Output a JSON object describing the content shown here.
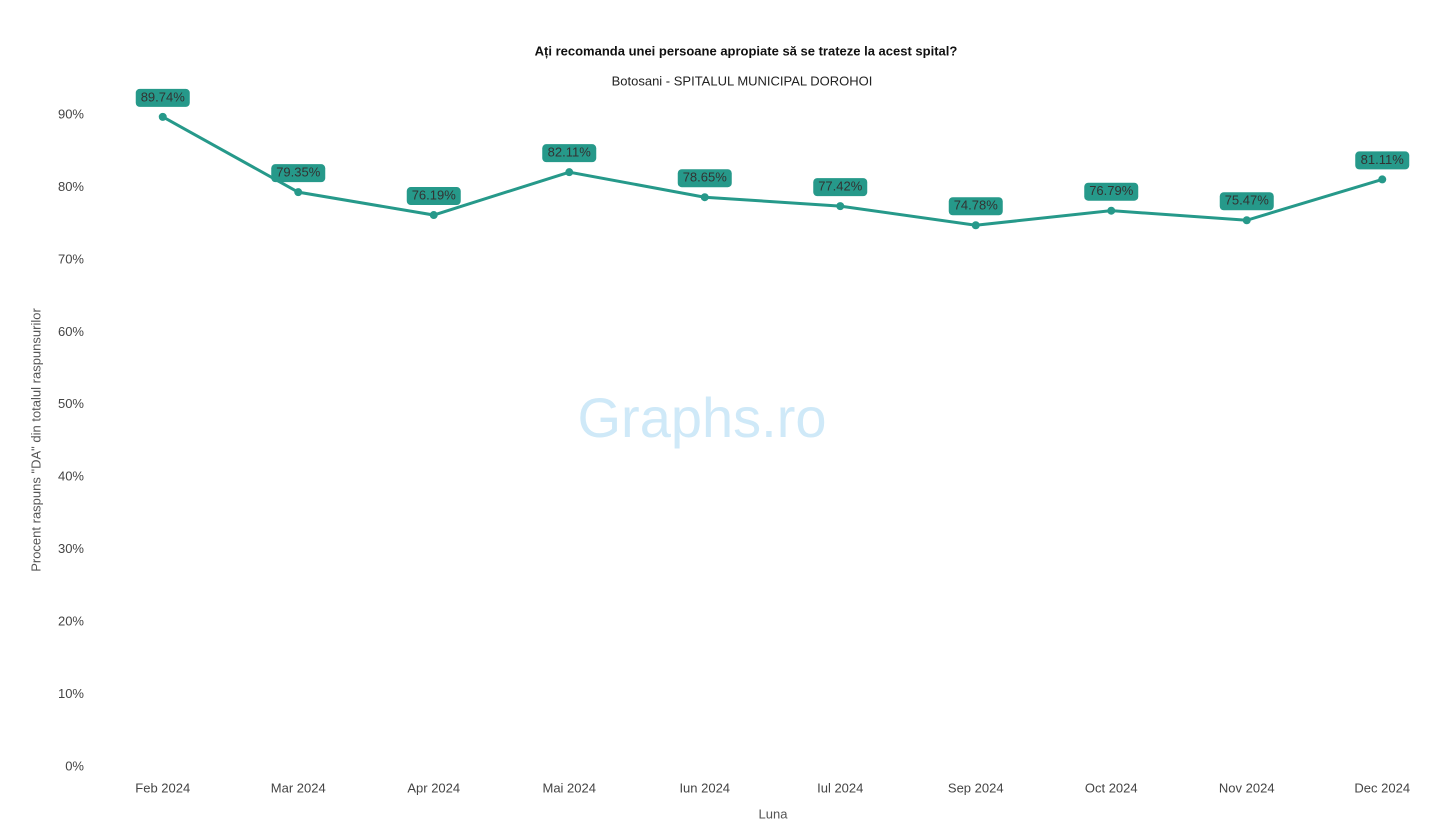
{
  "chart_data": {
    "type": "line",
    "title": "Ați recomanda unei persoane apropiate să se trateze la acest spital?",
    "subtitle": "Botosani - SPITALUL MUNICIPAL DOROHOI",
    "x_label": "Luna",
    "y_label": "Procent raspuns \"DA\" din totalul raspunsurilor",
    "watermark": "Graphs.ro",
    "categories": [
      "Feb 2024",
      "Mar 2024",
      "Apr 2024",
      "Mai 2024",
      "Iun 2024",
      "Iul 2024",
      "Sep 2024",
      "Oct 2024",
      "Nov 2024",
      "Dec 2024"
    ],
    "series": [
      {
        "color": "#26998a",
        "values": [
          89.74,
          79.35,
          76.19,
          82.11,
          78.65,
          77.42,
          74.78,
          76.79,
          75.47,
          81.11
        ],
        "value_labels": [
          "89.74%",
          "79.35%",
          "76.19%",
          "82.11%",
          "78.65%",
          "77.42%",
          "74.78%",
          "76.79%",
          "75.47%",
          "81.11%"
        ]
      }
    ],
    "ylim": [
      0,
      92
    ],
    "yticks": [
      {
        "value": 0,
        "label": "0%"
      },
      {
        "value": 10,
        "label": "10%"
      },
      {
        "value": 20,
        "label": "20%"
      },
      {
        "value": 30,
        "label": "30%"
      },
      {
        "value": 40,
        "label": "40%"
      },
      {
        "value": 50,
        "label": "50%"
      },
      {
        "value": 60,
        "label": "60%"
      },
      {
        "value": 70,
        "label": "70%"
      },
      {
        "value": 80,
        "label": "80%"
      },
      {
        "value": 90,
        "label": "90%"
      }
    ]
  }
}
